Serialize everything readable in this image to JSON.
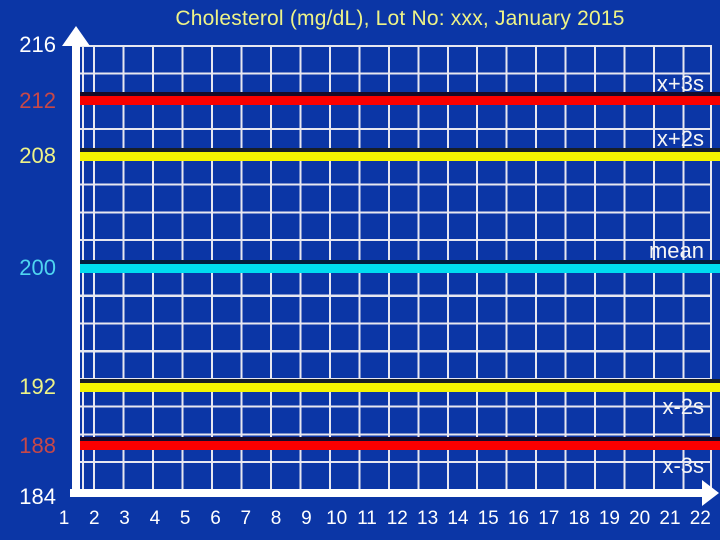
{
  "title": "Cholesterol (mg/dL), Lot No: xxx, January 2015",
  "colors": {
    "background": "#0b36a6",
    "grid": "#e7e7f0",
    "axis": "#ffffff",
    "title_text": "#eef387",
    "line_label_text": "#f5f5f5",
    "red_line": "#fb0000",
    "yellow_line": "#f5f500",
    "cyan_line": "#00ddf0",
    "tick_white": "#ffffff",
    "tick_red": "#c74848",
    "tick_yellow": "#eef387",
    "tick_cyan": "#4fd5f0"
  },
  "chart_data": {
    "type": "line",
    "title": "Cholesterol (mg/dL), Lot No: xxx, January 2015",
    "xlabel": "",
    "ylabel": "",
    "grid": true,
    "legend": false,
    "xlim": [
      0,
      22
    ],
    "ylim": [
      184,
      216
    ],
    "x_ticks": [
      1,
      2,
      3,
      4,
      5,
      6,
      7,
      8,
      9,
      10,
      11,
      12,
      13,
      14,
      15,
      16,
      17,
      18,
      19,
      20,
      21,
      22
    ],
    "y_ticks": [
      {
        "value": 216,
        "color": "#ffffff"
      },
      {
        "value": 212,
        "color": "#c74848"
      },
      {
        "value": 208,
        "color": "#eef387"
      },
      {
        "value": 200,
        "color": "#4fd5f0"
      },
      {
        "value": 192,
        "color": "#eef387"
      },
      {
        "value": 188,
        "color": "#c74848"
      },
      {
        "value": 184,
        "color": "#ffffff"
      }
    ],
    "series": [],
    "control_lines": [
      {
        "label": "x+3s",
        "value": 212,
        "color": "#fb0000",
        "label_side": "above"
      },
      {
        "label": "x+2s",
        "value": 208,
        "color": "#f5f500",
        "label_side": "above"
      },
      {
        "label": "mean",
        "value": 200,
        "color": "#00ddf0",
        "label_side": "above"
      },
      {
        "label": "x-2s",
        "value": 192,
        "color": "#f5f500",
        "label_side": "below"
      },
      {
        "label": "x-3s",
        "value": 188,
        "color": "#fb0000",
        "label_side": "below"
      }
    ]
  }
}
